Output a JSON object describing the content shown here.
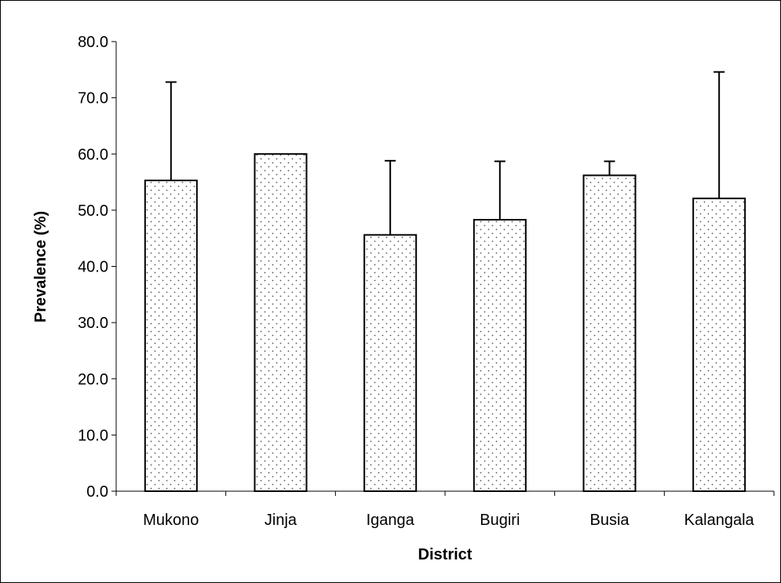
{
  "chart_data": {
    "type": "bar",
    "title": "",
    "xlabel": "District",
    "ylabel": "Prevalence (%)",
    "categories": [
      "Mukono",
      "Jinja",
      "Iganga",
      "Bugiri",
      "Busia",
      "Kalangala"
    ],
    "values": [
      55.3,
      60.0,
      45.6,
      48.3,
      56.2,
      52.1
    ],
    "error_upper": [
      17.5,
      0,
      13.2,
      10.4,
      2.5,
      22.5
    ],
    "ylim": [
      0,
      80
    ],
    "yticks": [
      "0.0",
      "10.0",
      "20.0",
      "30.0",
      "40.0",
      "50.0",
      "60.0",
      "70.0",
      "80.0"
    ],
    "grid": false,
    "legend": "none",
    "bar_fill": "#ffffff",
    "bar_pattern": "dotted",
    "bar_stroke": "#000000"
  }
}
